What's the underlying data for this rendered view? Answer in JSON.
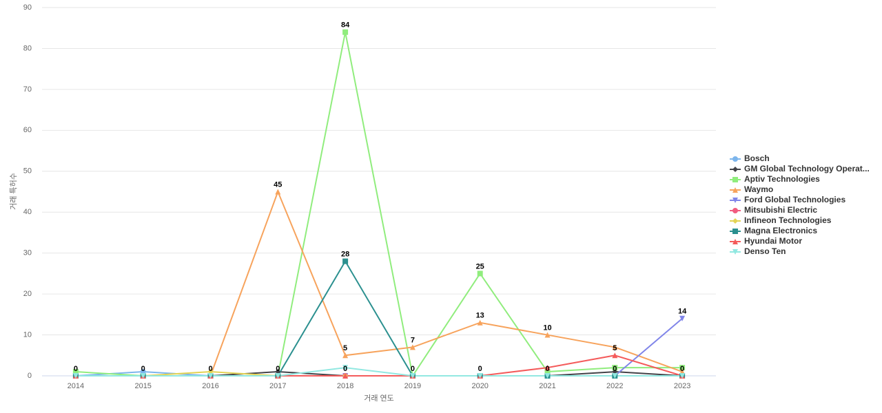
{
  "chart_data": {
    "type": "line",
    "x_label": "거래 연도",
    "y_label": "거래 특허수",
    "categories": [
      "2014",
      "2015",
      "2016",
      "2017",
      "2018",
      "2019",
      "2020",
      "2021",
      "2022",
      "2023"
    ],
    "ylim": [
      0,
      90
    ],
    "yticks": [
      0,
      10,
      20,
      30,
      40,
      50,
      60,
      70,
      80,
      90
    ],
    "grid": true,
    "legend": "right",
    "series": [
      {
        "name": "Bosch",
        "color": "#7cb5ec",
        "marker": "circle",
        "values": [
          0,
          1,
          0,
          0,
          0,
          0,
          0,
          0,
          0,
          0
        ]
      },
      {
        "name": "GM Global Technology Operat...",
        "color": "#434348",
        "marker": "diamond",
        "values": [
          0,
          0,
          0,
          1,
          0,
          0,
          0,
          0,
          1,
          0
        ]
      },
      {
        "name": "Aptiv Technologies",
        "color": "#90ed7d",
        "marker": "square",
        "values": [
          1,
          0,
          0,
          0,
          84,
          0,
          25,
          1,
          2,
          2
        ]
      },
      {
        "name": "Waymo",
        "color": "#f7a35c",
        "marker": "triangle",
        "values": [
          0,
          0,
          0,
          45,
          5,
          7,
          13,
          10,
          7,
          1
        ]
      },
      {
        "name": "Ford Global Technologies",
        "color": "#8085e9",
        "marker": "triangle-down",
        "values": [
          0,
          0,
          0,
          0,
          0,
          0,
          0,
          0,
          0,
          14
        ]
      },
      {
        "name": "Mitsubishi Electric",
        "color": "#f15c80",
        "marker": "circle",
        "values": [
          0,
          0,
          0,
          0,
          0,
          0,
          0,
          0,
          0,
          0
        ]
      },
      {
        "name": "Infineon Technologies",
        "color": "#e4d354",
        "marker": "diamond",
        "values": [
          0,
          0,
          1,
          0,
          0,
          0,
          0,
          0,
          0,
          0
        ]
      },
      {
        "name": "Magna Electronics",
        "color": "#2b908f",
        "marker": "square",
        "values": [
          0,
          0,
          0,
          0,
          28,
          0,
          0,
          0,
          0,
          0
        ]
      },
      {
        "name": "Hyundai Motor",
        "color": "#f45b5b",
        "marker": "triangle",
        "values": [
          0,
          0,
          0,
          0,
          0,
          0,
          0,
          2,
          5,
          0
        ]
      },
      {
        "name": "Denso Ten",
        "color": "#91e8e1",
        "marker": "triangle-down",
        "values": [
          0,
          0,
          0,
          0,
          2,
          0,
          0,
          0,
          0,
          0
        ]
      }
    ]
  }
}
